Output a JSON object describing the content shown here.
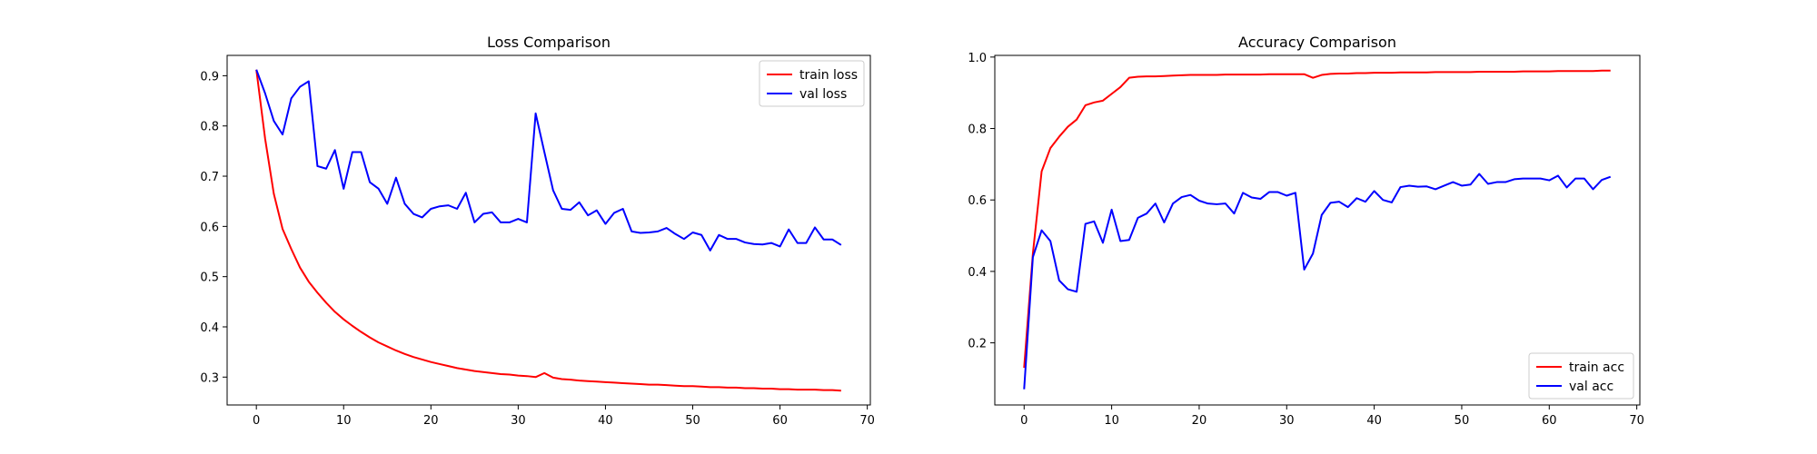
{
  "chart_data": [
    {
      "type": "line",
      "title": "Loss Comparison",
      "xlabel": "",
      "ylabel": "",
      "xlim": [
        -3.35,
        70.35
      ],
      "ylim": [
        0.2445,
        0.9405
      ],
      "xticks": [
        0,
        10,
        20,
        30,
        40,
        50,
        60,
        70
      ],
      "yticks": [
        0.3,
        0.4,
        0.5,
        0.6,
        0.7,
        0.8,
        0.9
      ],
      "legend_position": "top-right",
      "series": [
        {
          "name": "train loss",
          "color": "#ff0000",
          "x": [
            0,
            1,
            2,
            3,
            4,
            5,
            6,
            7,
            8,
            9,
            10,
            11,
            12,
            13,
            14,
            15,
            16,
            17,
            18,
            19,
            20,
            21,
            22,
            23,
            24,
            25,
            26,
            27,
            28,
            29,
            30,
            31,
            32,
            33,
            34,
            35,
            36,
            37,
            38,
            39,
            40,
            41,
            42,
            43,
            44,
            45,
            46,
            47,
            48,
            49,
            50,
            51,
            52,
            53,
            54,
            55,
            56,
            57,
            58,
            59,
            60,
            61,
            62,
            63,
            64,
            65,
            66,
            67
          ],
          "values": [
            0.912,
            0.775,
            0.665,
            0.595,
            0.555,
            0.518,
            0.49,
            0.468,
            0.448,
            0.43,
            0.415,
            0.402,
            0.39,
            0.379,
            0.369,
            0.361,
            0.353,
            0.346,
            0.34,
            0.335,
            0.33,
            0.326,
            0.322,
            0.318,
            0.315,
            0.312,
            0.31,
            0.308,
            0.306,
            0.305,
            0.303,
            0.302,
            0.3,
            0.308,
            0.299,
            0.296,
            0.295,
            0.293,
            0.292,
            0.291,
            0.29,
            0.289,
            0.288,
            0.287,
            0.286,
            0.285,
            0.285,
            0.284,
            0.283,
            0.282,
            0.282,
            0.281,
            0.28,
            0.28,
            0.279,
            0.279,
            0.278,
            0.278,
            0.277,
            0.277,
            0.276,
            0.276,
            0.275,
            0.275,
            0.275,
            0.274,
            0.274,
            0.273
          ]
        },
        {
          "name": "val loss",
          "color": "#0000ff",
          "x": [
            0,
            1,
            2,
            3,
            4,
            5,
            6,
            7,
            8,
            9,
            10,
            11,
            12,
            13,
            14,
            15,
            16,
            17,
            18,
            19,
            20,
            21,
            22,
            23,
            24,
            25,
            26,
            27,
            28,
            29,
            30,
            31,
            32,
            33,
            34,
            35,
            36,
            37,
            38,
            39,
            40,
            41,
            42,
            43,
            44,
            45,
            46,
            47,
            48,
            49,
            50,
            51,
            52,
            53,
            54,
            55,
            56,
            57,
            58,
            59,
            60,
            61,
            62,
            63,
            64,
            65,
            66,
            67
          ],
          "values": [
            0.912,
            0.865,
            0.81,
            0.783,
            0.855,
            0.878,
            0.889,
            0.72,
            0.715,
            0.752,
            0.675,
            0.748,
            0.748,
            0.688,
            0.675,
            0.645,
            0.697,
            0.645,
            0.625,
            0.618,
            0.635,
            0.64,
            0.642,
            0.635,
            0.667,
            0.608,
            0.625,
            0.628,
            0.608,
            0.608,
            0.615,
            0.608,
            0.825,
            0.748,
            0.672,
            0.635,
            0.633,
            0.648,
            0.622,
            0.632,
            0.605,
            0.627,
            0.635,
            0.59,
            0.587,
            0.588,
            0.59,
            0.597,
            0.585,
            0.575,
            0.588,
            0.583,
            0.552,
            0.583,
            0.575,
            0.575,
            0.568,
            0.565,
            0.564,
            0.567,
            0.56,
            0.594,
            0.567,
            0.567,
            0.598,
            0.574,
            0.574,
            0.563
          ]
        }
      ]
    },
    {
      "type": "line",
      "title": "Accuracy Comparison",
      "xlabel": "",
      "ylabel": "",
      "xlim": [
        -3.35,
        70.35
      ],
      "ylim": [
        0.0261,
        1.0047
      ],
      "xticks": [
        0,
        10,
        20,
        30,
        40,
        50,
        60,
        70
      ],
      "yticks": [
        0.2,
        0.4,
        0.6,
        0.8,
        1.0
      ],
      "ytick_labels": [
        "0.2",
        "0.4",
        "0.6",
        "0.8",
        "1.0"
      ],
      "legend_position": "bottom-right",
      "series": [
        {
          "name": "train acc",
          "color": "#ff0000",
          "x": [
            0,
            1,
            2,
            3,
            4,
            5,
            6,
            7,
            8,
            9,
            10,
            11,
            12,
            13,
            14,
            15,
            16,
            17,
            18,
            19,
            20,
            21,
            22,
            23,
            24,
            25,
            26,
            27,
            28,
            29,
            30,
            31,
            32,
            33,
            34,
            35,
            36,
            37,
            38,
            39,
            40,
            41,
            42,
            43,
            44,
            45,
            46,
            47,
            48,
            49,
            50,
            51,
            52,
            53,
            54,
            55,
            56,
            57,
            58,
            59,
            60,
            61,
            62,
            63,
            64,
            65,
            66,
            67
          ],
          "values": [
            0.13,
            0.45,
            0.68,
            0.745,
            0.777,
            0.805,
            0.825,
            0.865,
            0.873,
            0.878,
            0.897,
            0.916,
            0.942,
            0.945,
            0.946,
            0.946,
            0.947,
            0.948,
            0.949,
            0.95,
            0.95,
            0.95,
            0.95,
            0.951,
            0.951,
            0.951,
            0.951,
            0.951,
            0.952,
            0.952,
            0.952,
            0.952,
            0.952,
            0.942,
            0.95,
            0.953,
            0.954,
            0.954,
            0.955,
            0.955,
            0.956,
            0.956,
            0.956,
            0.957,
            0.957,
            0.957,
            0.957,
            0.958,
            0.958,
            0.958,
            0.958,
            0.958,
            0.959,
            0.959,
            0.959,
            0.959,
            0.959,
            0.96,
            0.96,
            0.96,
            0.96,
            0.961,
            0.961,
            0.961,
            0.961,
            0.961,
            0.962,
            0.962
          ]
        },
        {
          "name": "val acc",
          "color": "#0000ff",
          "x": [
            0,
            1,
            2,
            3,
            4,
            5,
            6,
            7,
            8,
            9,
            10,
            11,
            12,
            13,
            14,
            15,
            16,
            17,
            18,
            19,
            20,
            21,
            22,
            23,
            24,
            25,
            26,
            27,
            28,
            29,
            30,
            31,
            32,
            33,
            34,
            35,
            36,
            37,
            38,
            39,
            40,
            41,
            42,
            43,
            44,
            45,
            46,
            47,
            48,
            49,
            50,
            51,
            52,
            53,
            54,
            55,
            56,
            57,
            58,
            59,
            60,
            61,
            62,
            63,
            64,
            65,
            66,
            67
          ],
          "values": [
            0.07,
            0.44,
            0.515,
            0.485,
            0.375,
            0.35,
            0.343,
            0.533,
            0.54,
            0.48,
            0.573,
            0.485,
            0.488,
            0.55,
            0.562,
            0.59,
            0.537,
            0.59,
            0.608,
            0.614,
            0.598,
            0.59,
            0.588,
            0.59,
            0.562,
            0.62,
            0.607,
            0.603,
            0.622,
            0.622,
            0.612,
            0.62,
            0.405,
            0.45,
            0.558,
            0.592,
            0.595,
            0.58,
            0.605,
            0.595,
            0.625,
            0.6,
            0.593,
            0.636,
            0.64,
            0.637,
            0.638,
            0.63,
            0.64,
            0.65,
            0.64,
            0.643,
            0.673,
            0.645,
            0.65,
            0.65,
            0.658,
            0.66,
            0.66,
            0.66,
            0.655,
            0.668,
            0.635,
            0.66,
            0.66,
            0.63,
            0.656,
            0.665
          ]
        }
      ]
    }
  ]
}
